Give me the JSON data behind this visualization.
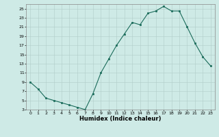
{
  "x": [
    0,
    1,
    2,
    3,
    4,
    5,
    6,
    7,
    8,
    9,
    10,
    11,
    12,
    13,
    14,
    15,
    16,
    17,
    18,
    19,
    20,
    21,
    22,
    23
  ],
  "y": [
    9,
    7.5,
    5.5,
    5,
    4.5,
    4,
    3.5,
    3,
    6.5,
    11,
    14,
    17,
    19.5,
    22,
    21.5,
    24,
    24.5,
    25.5,
    24.5,
    24.5,
    21,
    17.5,
    14.5,
    12.5
  ],
  "xlabel": "Humidex (Indice chaleur)",
  "ylim": [
    3,
    26
  ],
  "xlim": [
    -0.5,
    23.5
  ],
  "yticks": [
    3,
    5,
    7,
    9,
    11,
    13,
    15,
    17,
    19,
    21,
    23,
    25
  ],
  "xticks": [
    0,
    1,
    2,
    3,
    4,
    5,
    6,
    7,
    8,
    9,
    10,
    11,
    12,
    13,
    14,
    15,
    16,
    17,
    18,
    19,
    20,
    21,
    22,
    23
  ],
  "line_color": "#1a6b5a",
  "marker_color": "#1a6b5a",
  "bg_color": "#ceeae6",
  "grid_color": "#b0ccc8"
}
